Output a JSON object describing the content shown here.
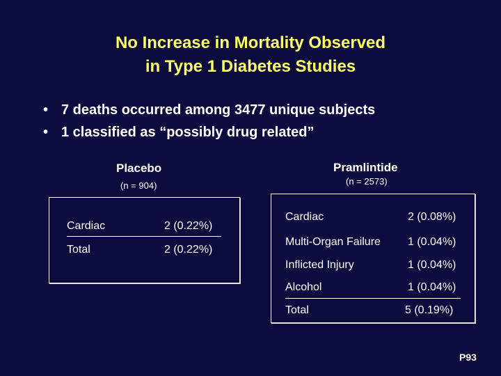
{
  "title": {
    "line1": "No Increase in Mortality Observed",
    "line2": "in Type 1 Diabetes Studies"
  },
  "bullets": [
    "7 deaths occurred among 3477 unique subjects",
    "1 classified as “possibly drug related”"
  ],
  "placebo": {
    "heading": "Placebo",
    "n": "(n = 904)",
    "rows": [
      {
        "label": "Cardiac",
        "value": "2 (0.22%)"
      },
      {
        "label": "Total",
        "value": "2 (0.22%)"
      }
    ]
  },
  "pramlintide": {
    "heading": "Pramlintide",
    "n": "(n = 2573)",
    "rows": [
      {
        "label": "Cardiac",
        "value": "2 (0.08%)"
      },
      {
        "label": "Multi-Organ Failure",
        "value": "1 (0.04%)"
      },
      {
        "label": "Inflicted Injury",
        "value": "1 (0.04%)"
      },
      {
        "label": "Alcohol",
        "value": "1 (0.04%)"
      },
      {
        "label": "Total",
        "value": "5 (0.19%)"
      }
    ]
  },
  "page_number": "P93",
  "colors": {
    "background": "#0b0b3d",
    "title": "#ffff66",
    "text": "#ffffff"
  }
}
